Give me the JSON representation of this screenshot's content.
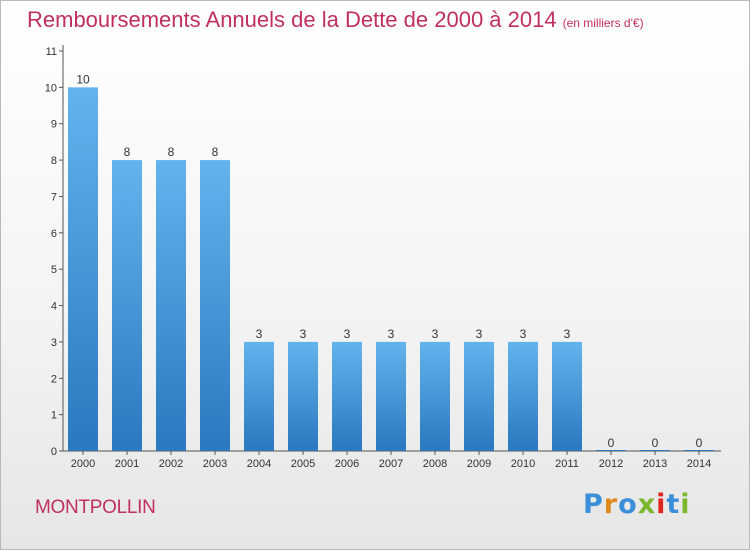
{
  "header": {
    "title": "Remboursements Annuels de la Dette de 2000 à 2014",
    "unit": "(en milliers d'€)"
  },
  "footer": {
    "town": "MONTPOLLIN",
    "logo": "Proxiti",
    "logo_colors": [
      "#3a8fd8",
      "#e08a1e",
      "#3a8fd8",
      "#7cb82f",
      "#e0261e",
      "#3a8fd8",
      "#7cb82f"
    ]
  },
  "colors": {
    "title": "#c0305e",
    "bar_light": "#63b3ee",
    "bar_dark": "#2a78be",
    "axis": "#555555"
  },
  "chart_data": {
    "type": "bar",
    "title": "Remboursements Annuels de la Dette de 2000 à 2014",
    "subtitle": "(en milliers d'€)",
    "categories": [
      "2000",
      "2001",
      "2002",
      "2003",
      "2004",
      "2005",
      "2006",
      "2007",
      "2008",
      "2009",
      "2010",
      "2011",
      "2012",
      "2013",
      "2014"
    ],
    "values": [
      10,
      8,
      8,
      8,
      3,
      3,
      3,
      3,
      3,
      3,
      3,
      3,
      0,
      0,
      0
    ],
    "value_labels": [
      "10",
      "8",
      "8",
      "8",
      "3",
      "3",
      "3",
      "3",
      "3",
      "3",
      "3",
      "3",
      "0",
      "0",
      "0"
    ],
    "y_ticks": [
      "0",
      "1",
      "2",
      "3",
      "4",
      "5",
      "6",
      "7",
      "8",
      "9",
      "10",
      "11"
    ],
    "ylim": [
      0,
      11
    ],
    "xlabel": "",
    "ylabel": "",
    "grid": false,
    "legend": "none"
  }
}
